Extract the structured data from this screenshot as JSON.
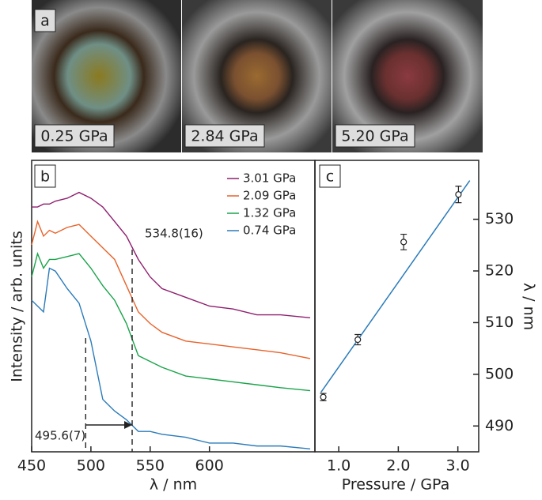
{
  "photos": {
    "label": "a",
    "captions": [
      "0.25 GPa",
      "2.84 GPa",
      "5.20 GPa"
    ]
  },
  "chart_data": [
    {
      "type": "line",
      "panel": "b",
      "xlabel": "λ / nm",
      "ylabel": "Intensity / arb. units",
      "x": [
        450,
        455,
        460,
        465,
        470,
        480,
        490,
        500,
        510,
        520,
        530,
        540,
        550,
        560,
        580,
        600,
        620,
        640,
        660,
        685
      ],
      "series": [
        {
          "name": "3.01 GPa",
          "color": "#8e1f6e",
          "values": [
            84,
            84,
            85,
            85,
            86,
            87,
            89,
            87,
            84,
            79,
            74,
            66,
            60,
            56,
            53,
            50,
            49,
            47,
            47,
            46
          ]
        },
        {
          "name": "2.09 GPa",
          "color": "#e8622a",
          "values": [
            71,
            79,
            74,
            76,
            75,
            77,
            78,
            74,
            70,
            66,
            57,
            48,
            44,
            41,
            38,
            37,
            36,
            35,
            34,
            32
          ]
        },
        {
          "name": "1.32 GPa",
          "color": "#1aa34a",
          "values": [
            60,
            68,
            63,
            66,
            66,
            67,
            68,
            63,
            57,
            52,
            44,
            33,
            31,
            29,
            26,
            25,
            24,
            23,
            22,
            21
          ]
        },
        {
          "name": "0.74 GPa",
          "color": "#2b7bb9",
          "values": [
            52,
            50,
            48,
            63,
            62,
            56,
            51,
            38,
            18,
            14,
            11,
            7,
            7,
            6,
            5,
            3,
            3,
            2,
            2,
            1
          ]
        }
      ],
      "xlim": [
        450,
        689
      ],
      "xticks": [
        450,
        500,
        550,
        600
      ],
      "ylim": [
        0,
        100
      ],
      "annotations": [
        {
          "x": 495.6,
          "label": "495.6(7)"
        },
        {
          "x": 534.8,
          "label": "534.8(16)"
        }
      ]
    },
    {
      "type": "scatter",
      "panel": "c",
      "xlabel": "Pressure / GPa",
      "ylabel": "λ / nm",
      "x": [
        0.74,
        1.32,
        2.09,
        3.01
      ],
      "values": [
        495.6,
        506.7,
        525.6,
        534.8
      ],
      "errors": [
        0.7,
        1.0,
        1.5,
        1.6
      ],
      "fit": {
        "x": [
          0.7,
          3.2
        ],
        "y": [
          496.5,
          537.5
        ],
        "color": "#2b7bb9"
      },
      "xlim": [
        0.6,
        3.35
      ],
      "xticks": [
        {
          "value": 1,
          "label": "1.0"
        },
        {
          "value": 2,
          "label": "2.0"
        },
        {
          "value": 3,
          "label": "3.0"
        }
      ],
      "ylim": [
        485,
        541.4
      ],
      "yticks": [
        490,
        500,
        510,
        520,
        530
      ]
    }
  ]
}
